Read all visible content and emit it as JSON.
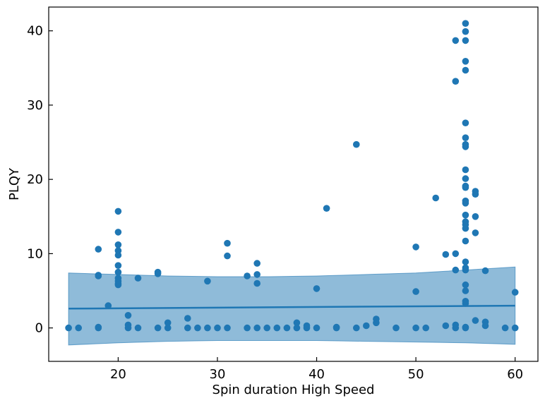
{
  "chart_data": {
    "type": "scatter",
    "title": "",
    "xlabel": "Spin duration High Speed",
    "ylabel": "PLQY",
    "xlim": [
      13,
      62.3
    ],
    "ylim": [
      -4.5,
      43.2
    ],
    "x_ticks": [
      20,
      30,
      40,
      50,
      60
    ],
    "y_ticks": [
      0,
      10,
      20,
      30,
      40
    ],
    "grid": false,
    "colors": {
      "points": "#1f77b4",
      "line": "#1f77b4",
      "band": "#1f77b4"
    },
    "points": [
      [
        15,
        0
      ],
      [
        16,
        0
      ],
      [
        18,
        10.6
      ],
      [
        18,
        7.1
      ],
      [
        18,
        7.0
      ],
      [
        18,
        0.1
      ],
      [
        18,
        0
      ],
      [
        19,
        3.0
      ],
      [
        20,
        15.7
      ],
      [
        20,
        12.9
      ],
      [
        20,
        11.2
      ],
      [
        20,
        10.4
      ],
      [
        20,
        9.8
      ],
      [
        20,
        8.4
      ],
      [
        20,
        7.5
      ],
      [
        20,
        6.7
      ],
      [
        20,
        6.3
      ],
      [
        20,
        6.0
      ],
      [
        20,
        5.8
      ],
      [
        21,
        1.7
      ],
      [
        21,
        0.4
      ],
      [
        21,
        0
      ],
      [
        22,
        6.7
      ],
      [
        22,
        0
      ],
      [
        24,
        7.5
      ],
      [
        24,
        7.3
      ],
      [
        24,
        0
      ],
      [
        25,
        0.7
      ],
      [
        25,
        0
      ],
      [
        27,
        1.3
      ],
      [
        27,
        0
      ],
      [
        28,
        0
      ],
      [
        29,
        6.3
      ],
      [
        29,
        0
      ],
      [
        30,
        0
      ],
      [
        31,
        11.4
      ],
      [
        31,
        9.7
      ],
      [
        31,
        0
      ],
      [
        33,
        7.0
      ],
      [
        33,
        0
      ],
      [
        34,
        8.7
      ],
      [
        34,
        7.2
      ],
      [
        34,
        6.0
      ],
      [
        34,
        0
      ],
      [
        35,
        0
      ],
      [
        36,
        0
      ],
      [
        37,
        0
      ],
      [
        38,
        0.7
      ],
      [
        38,
        0
      ],
      [
        39,
        0.3
      ],
      [
        39,
        0
      ],
      [
        40,
        5.3
      ],
      [
        40,
        0
      ],
      [
        41,
        16.1
      ],
      [
        42,
        0.1
      ],
      [
        42,
        0
      ],
      [
        44,
        24.7
      ],
      [
        44,
        0
      ],
      [
        45,
        0.3
      ],
      [
        46,
        1.2
      ],
      [
        46,
        0.7
      ],
      [
        48,
        0
      ],
      [
        50,
        10.9
      ],
      [
        50,
        4.9
      ],
      [
        50,
        0
      ],
      [
        51,
        0
      ],
      [
        52,
        17.5
      ],
      [
        53,
        9.9
      ],
      [
        53,
        0.3
      ],
      [
        54,
        38.7
      ],
      [
        54,
        33.2
      ],
      [
        54,
        10.0
      ],
      [
        54,
        7.8
      ],
      [
        54,
        0.4
      ],
      [
        54,
        0
      ],
      [
        55,
        41.0
      ],
      [
        55,
        39.9
      ],
      [
        55,
        38.7
      ],
      [
        55,
        35.9
      ],
      [
        55,
        34.7
      ],
      [
        55,
        27.6
      ],
      [
        55,
        25.6
      ],
      [
        55,
        24.7
      ],
      [
        55,
        24.4
      ],
      [
        55,
        21.3
      ],
      [
        55,
        20.1
      ],
      [
        55,
        19.1
      ],
      [
        55,
        18.9
      ],
      [
        55,
        17.1
      ],
      [
        55,
        16.8
      ],
      [
        55,
        15.2
      ],
      [
        55,
        14.3
      ],
      [
        55,
        13.9
      ],
      [
        55,
        13.4
      ],
      [
        55,
        11.7
      ],
      [
        55,
        8.9
      ],
      [
        55,
        8.1
      ],
      [
        55,
        7.8
      ],
      [
        55,
        5.8
      ],
      [
        55,
        5.0
      ],
      [
        55,
        3.6
      ],
      [
        55,
        3.3
      ],
      [
        55,
        0.1
      ],
      [
        55,
        0
      ],
      [
        56,
        18.4
      ],
      [
        56,
        18.0
      ],
      [
        56,
        15.0
      ],
      [
        56,
        12.8
      ],
      [
        56,
        1.0
      ],
      [
        57,
        7.7
      ],
      [
        57,
        0.8
      ],
      [
        57,
        0.3
      ],
      [
        59,
        0
      ],
      [
        60,
        4.8
      ],
      [
        60,
        0
      ]
    ],
    "fit_line": {
      "x": [
        15,
        60
      ],
      "y": [
        2.6,
        3.0
      ]
    },
    "confidence_band": {
      "x": [
        15,
        20,
        25,
        30,
        35,
        40,
        45,
        50,
        55,
        60
      ],
      "upper": [
        7.4,
        7.2,
        7.0,
        6.9,
        6.9,
        7.0,
        7.2,
        7.4,
        7.8,
        8.2
      ],
      "lower": [
        -2.3,
        -2.0,
        -1.8,
        -1.7,
        -1.7,
        -1.7,
        -1.8,
        -1.9,
        -2.0,
        -2.2
      ]
    }
  }
}
